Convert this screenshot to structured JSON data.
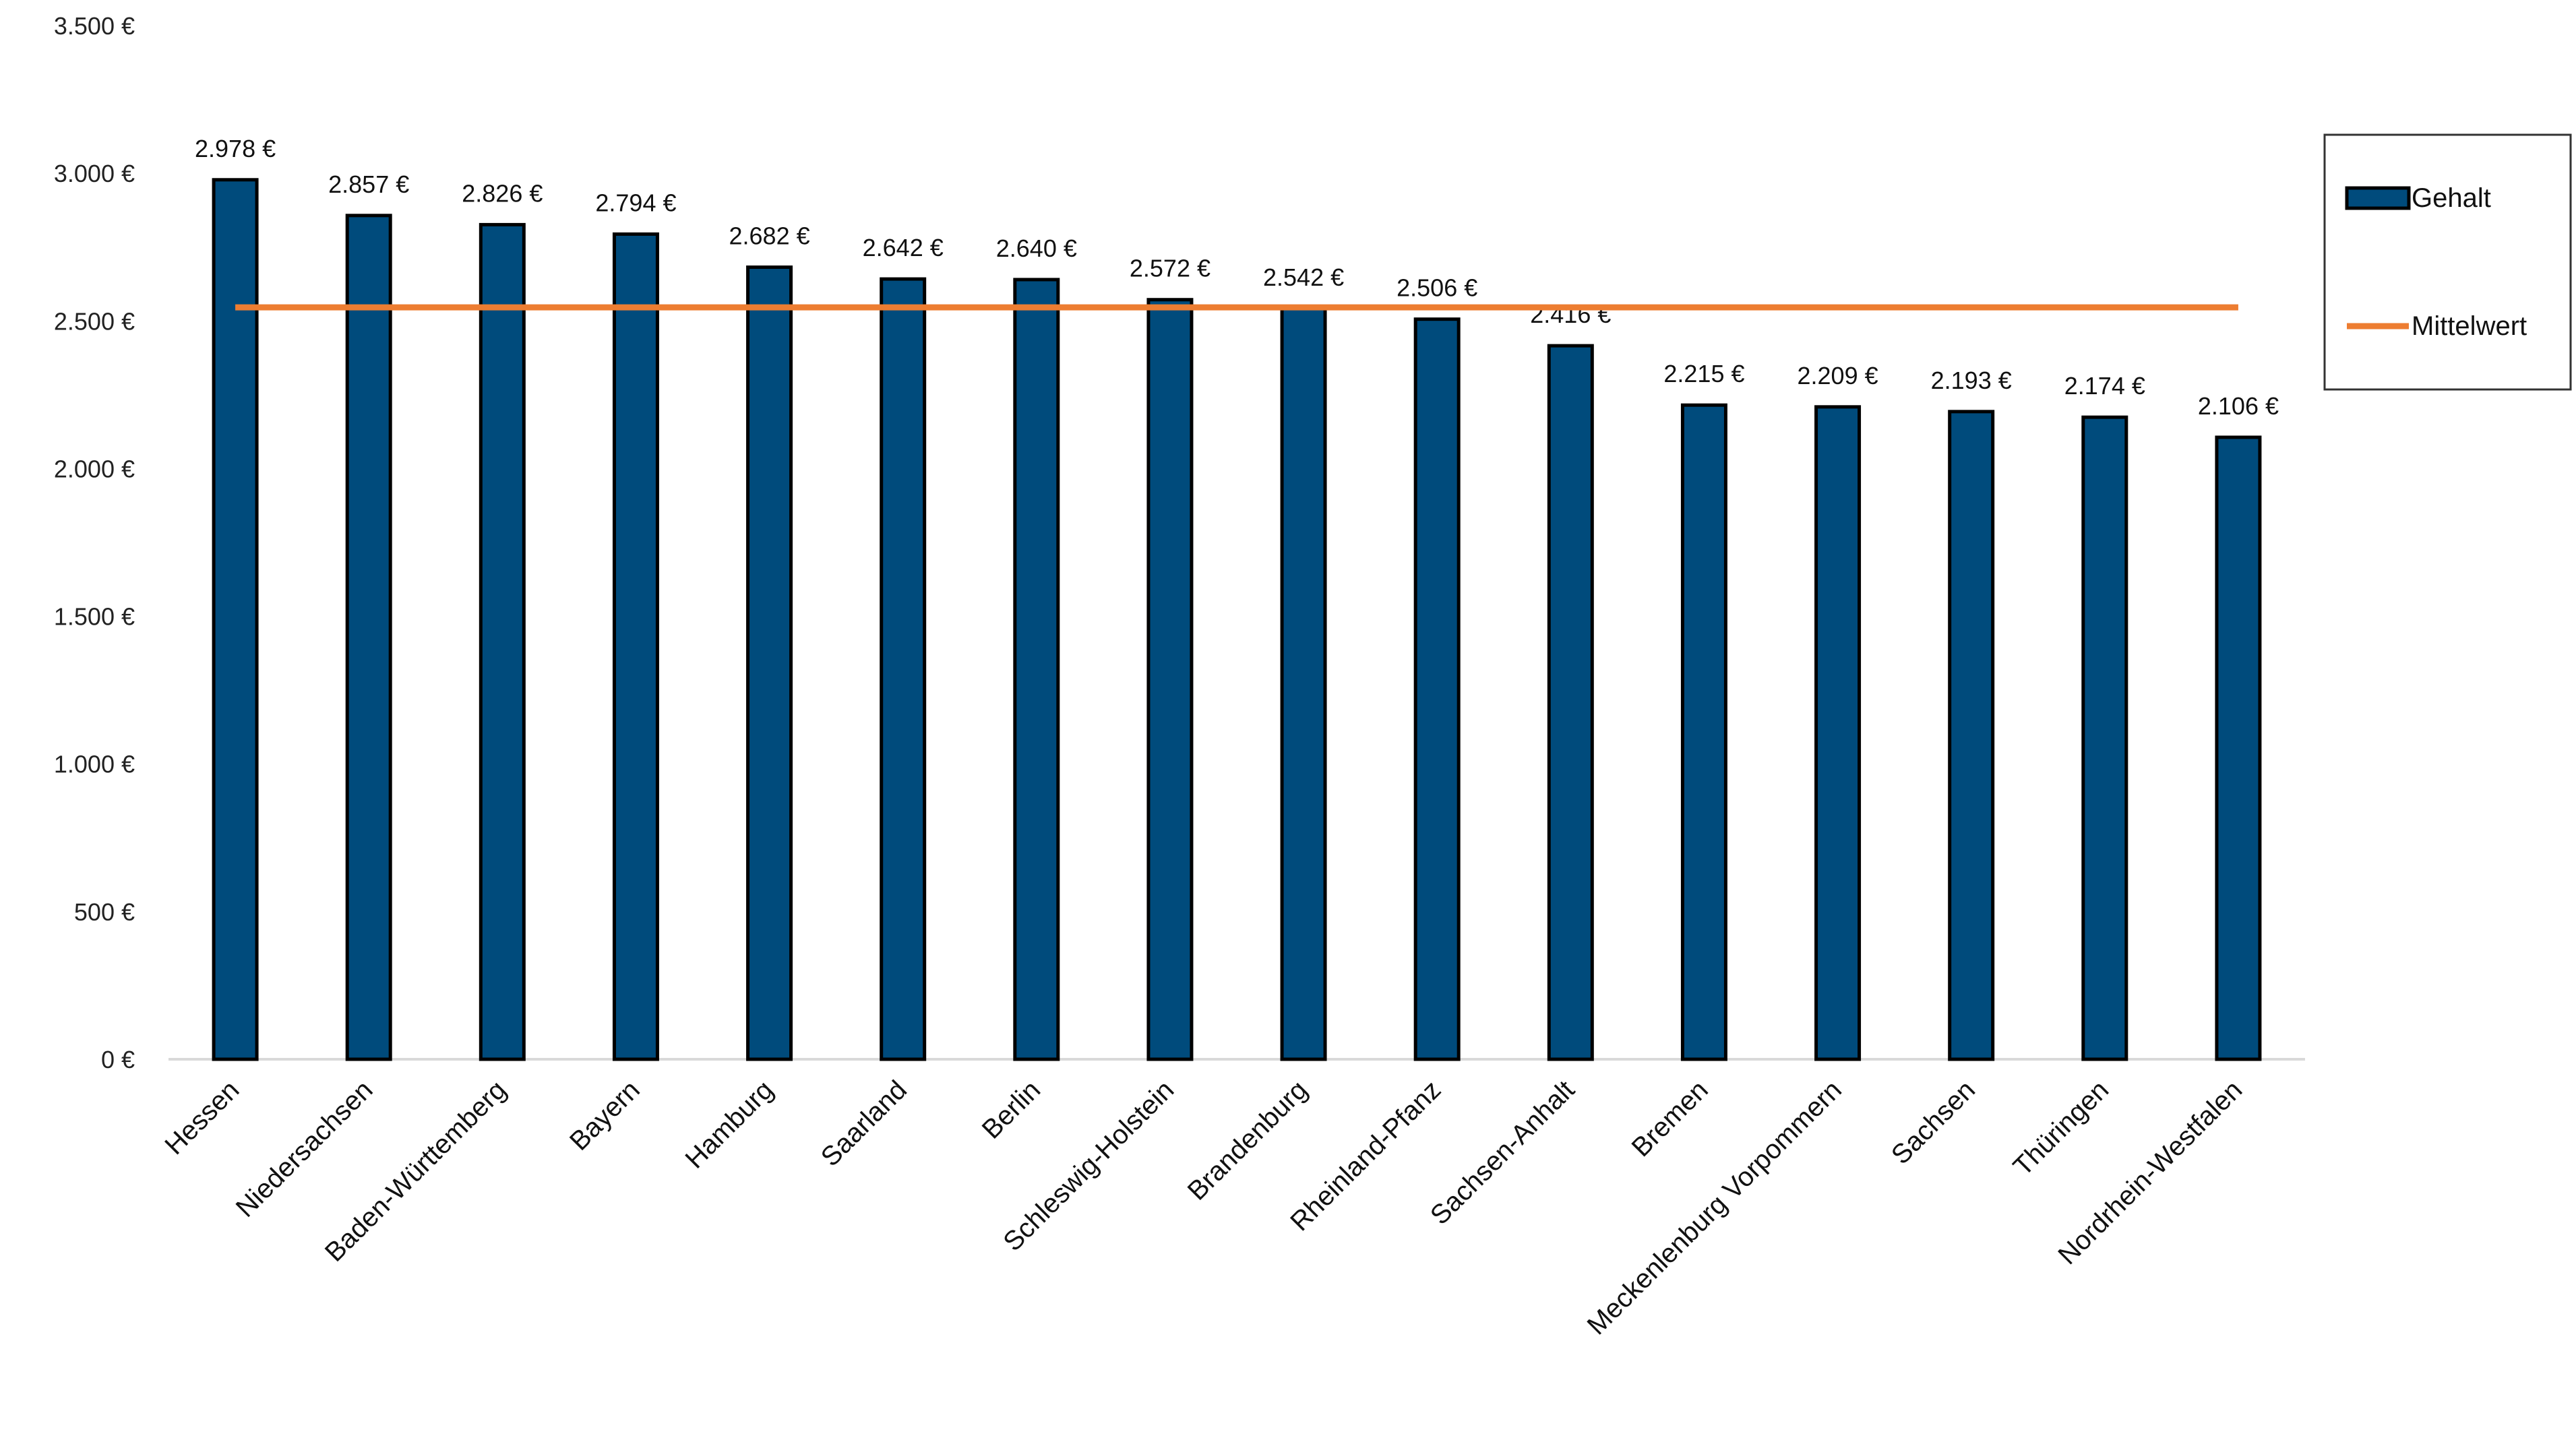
{
  "chart_data": {
    "type": "bar",
    "categories": [
      "Hessen",
      "Niedersachsen",
      "Baden-Württemberg",
      "Bayern",
      "Hamburg",
      "Saarland",
      "Berlin",
      "Schleswig-Holstein",
      "Brandenburg",
      "Rheinland-Pfanz",
      "Sachsen-Anhalt",
      "Bremen",
      "Meckenlenburg Vorpommern",
      "Sachsen",
      "Thüringen",
      "Nordrhein-Westfalen"
    ],
    "series": [
      {
        "name": "Gehalt",
        "type": "bar",
        "color": "#004B7C",
        "values": [
          2978,
          2857,
          2826,
          2794,
          2682,
          2642,
          2640,
          2572,
          2542,
          2506,
          2416,
          2215,
          2209,
          2193,
          2174,
          2106
        ],
        "labels": [
          "2.978 €",
          "2.857 €",
          "2.826 €",
          "2.794 €",
          "2.682 €",
          "2.642 €",
          "2.640 €",
          "2.572 €",
          "2.542 €",
          "2.506 €",
          "2.416 €",
          "2.215 €",
          "2.209 €",
          "2.193 €",
          "2.174 €",
          "2.106 €"
        ]
      },
      {
        "name": "Mittelwert",
        "type": "line",
        "color": "#ED7D31",
        "value": 2546
      }
    ],
    "ylim": [
      0,
      3500
    ],
    "yticks": [
      0,
      500,
      1000,
      1500,
      2000,
      2500,
      3000,
      3500
    ],
    "ytick_labels": [
      "0 €",
      "500 €",
      "1.000 €",
      "1.500 €",
      "2.000 €",
      "2.500 €",
      "3.000 €",
      "3.500 €"
    ],
    "legend": "right",
    "grid": false
  }
}
